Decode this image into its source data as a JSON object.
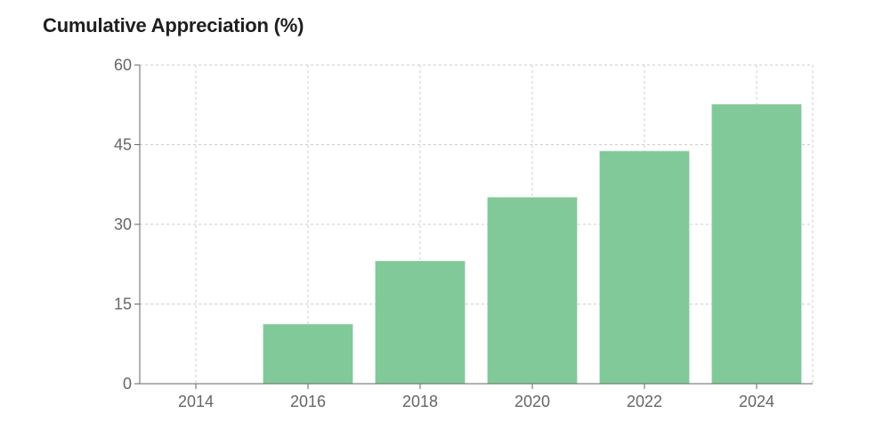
{
  "chart_data": {
    "type": "bar",
    "title": "Cumulative Appreciation (%)",
    "xlabel": "",
    "ylabel": "",
    "categories": [
      "2014",
      "2016",
      "2018",
      "2020",
      "2022",
      "2024"
    ],
    "values": [
      0,
      11.2,
      23.1,
      35.1,
      43.8,
      52.6
    ],
    "ylim": [
      0,
      60
    ],
    "yticks": [
      0,
      15,
      30,
      45,
      60
    ],
    "grid": true,
    "bar_color": "#82c99a",
    "grid_color": "#cccccc",
    "axis_color": "#666666"
  }
}
